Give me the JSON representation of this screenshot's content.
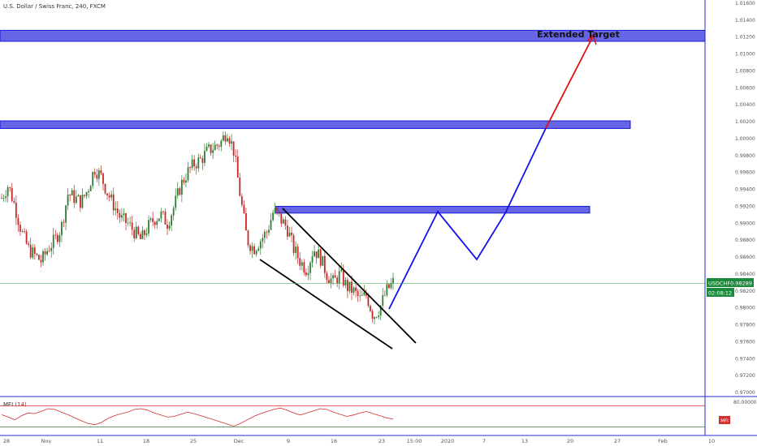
{
  "header": {
    "title": "U.S. Dollar / Swiss Franc, 240, FXCM"
  },
  "price_tag": {
    "symbol": "USDCHF",
    "price": "0.98289",
    "countdown": "02:08:12",
    "bg_color": "#1b8a3a"
  },
  "extended_target_label": "Extended Target",
  "mfi": {
    "label": "MFI",
    "period": "(14)",
    "upper_level_label": "80.00000",
    "tag": "MFI",
    "line_color": "#d32f2f",
    "tag_color": "#d32f2f"
  },
  "colors": {
    "up_candle": "#2e7d32",
    "down_candle": "#c62828",
    "zone_fill": "#4a4ae0",
    "zone_border": "#1a1ad6",
    "wedge_lines": "#000000",
    "projection_blue": "#1010ee",
    "projection_red": "#e01010",
    "price_line": "#2e9e44"
  },
  "chart_data": {
    "type": "candlestick",
    "title": "U.S. Dollar / Swiss Franc, 240, FXCM",
    "y_axis_ticks": [
      "1.01600",
      "1.01400",
      "1.01200",
      "1.01000",
      "1.00800",
      "1.00600",
      "1.00400",
      "1.00200",
      "1.00000",
      "0.99800",
      "0.99600",
      "0.99400",
      "0.99200",
      "0.99000",
      "0.98800",
      "0.98600",
      "0.98400",
      "0.98200",
      "0.98000",
      "0.97800",
      "0.97600",
      "0.97400",
      "0.97200",
      "0.97000"
    ],
    "x_axis_ticks": [
      "28",
      "Nov",
      "11",
      "18",
      "25",
      "Dec",
      "9",
      "16",
      "23",
      "15:00",
      "2020",
      "7",
      "13",
      "20",
      "27",
      "Feb",
      "10"
    ],
    "ylim": [
      0.9695,
      1.0165
    ],
    "current_price": 0.98289,
    "grid": false,
    "approx_close_path": [
      0.993,
      0.9945,
      0.992,
      0.989,
      0.987,
      0.9862,
      0.9855,
      0.987,
      0.988,
      0.9895,
      0.9935,
      0.993,
      0.9925,
      0.994,
      0.9965,
      0.9955,
      0.9935,
      0.992,
      0.9905,
      0.99,
      0.989,
      0.988,
      0.9895,
      0.9905,
      0.991,
      0.99,
      0.992,
      0.9945,
      0.996,
      0.997,
      0.9975,
      0.9985,
      0.999,
      0.9995,
      1.001,
      0.9985,
      0.993,
      0.988,
      0.987,
      0.988,
      0.989,
      0.9915,
      0.9905,
      0.9895,
      0.987,
      0.9855,
      0.9845,
      0.987,
      0.986,
      0.984,
      0.983,
      0.984,
      0.9825,
      0.982,
      0.981,
      0.9815,
      0.979,
      0.98,
      0.982,
      0.983
    ],
    "zones": [
      {
        "from": 1.0115,
        "to": 1.0128
      },
      {
        "from": 1.0012,
        "to": 1.0021
      },
      {
        "from": 0.9912,
        "to": 0.992
      }
    ],
    "projection_path": [
      0.98,
      0.9915,
      0.986,
      0.9923,
      1.001,
      1.012
    ]
  },
  "mfi_series": [
    55,
    48,
    40,
    52,
    60,
    58,
    65,
    72,
    70,
    62,
    55,
    46,
    38,
    30,
    26,
    32,
    44,
    52,
    58,
    62,
    70,
    72,
    68,
    60,
    54,
    48,
    50,
    56,
    62,
    58,
    52,
    46,
    40,
    34,
    28,
    22,
    30,
    40,
    50,
    58,
    64,
    70,
    74,
    68,
    60,
    54,
    60,
    66,
    72,
    70,
    62,
    56,
    50,
    54,
    60,
    64,
    58,
    52,
    46,
    42
  ]
}
